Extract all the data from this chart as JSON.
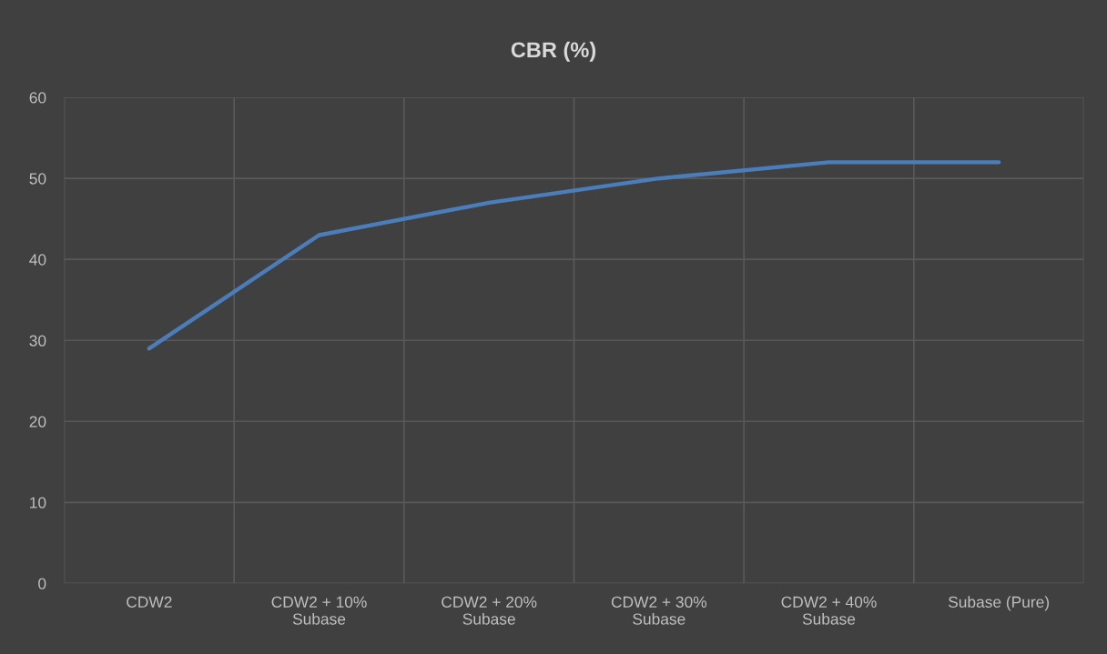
{
  "chart_data": {
    "type": "line",
    "title": "CBR (%)",
    "categories": [
      "CDW2",
      "CDW2 + 10%\nSubase",
      "CDW2 + 20%\nSubase",
      "CDW2 + 30%\nSubase",
      "CDW2 + 40%\nSubase",
      "Subase (Pure)"
    ],
    "series": [
      {
        "color": "#4a7ebb",
        "values": [
          29,
          43,
          47,
          50,
          52,
          52
        ]
      }
    ],
    "ylim": [
      0,
      60
    ],
    "yticks": [
      0,
      10,
      20,
      30,
      40,
      50,
      60
    ],
    "grid": true,
    "marker": "none",
    "line_style": "solid"
  }
}
